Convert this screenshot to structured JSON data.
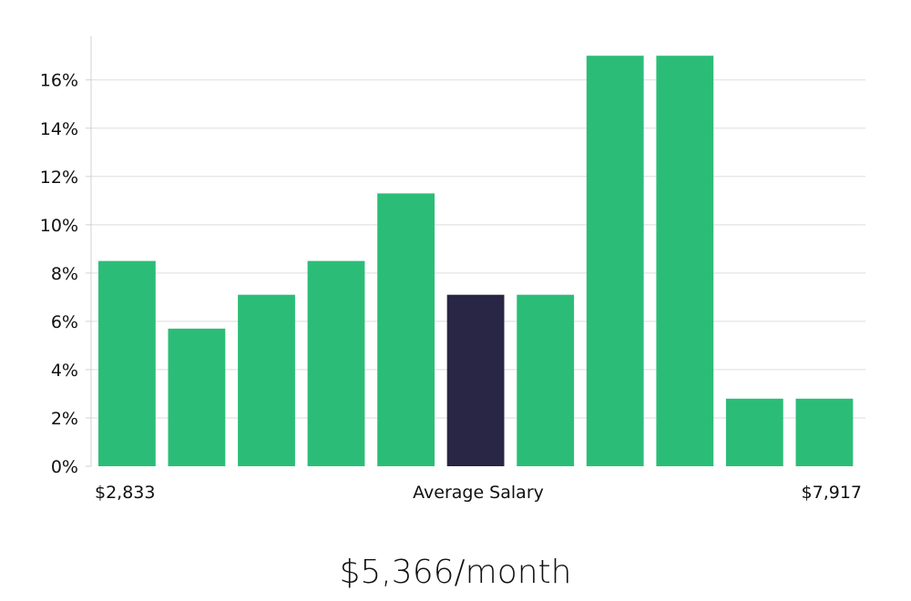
{
  "colors": {
    "bar": "#2bbd77",
    "highlight": "#282545",
    "grid": "#dddddd",
    "axis": "#d0d0d0"
  },
  "chart_data": {
    "type": "bar",
    "categories": [
      "1",
      "2",
      "3",
      "4",
      "5",
      "6",
      "7",
      "8",
      "9",
      "10",
      "11"
    ],
    "values": [
      8.5,
      5.7,
      7.1,
      8.5,
      11.3,
      7.1,
      7.1,
      17.0,
      17.0,
      2.8,
      2.8
    ],
    "highlight_index": 5,
    "ylim": [
      0,
      17.8
    ],
    "yticks": [
      0,
      2,
      4,
      6,
      8,
      10,
      12,
      14,
      16
    ],
    "ytick_suffix": "%",
    "grid": true,
    "x_min_label": "$2,833",
    "xlabel": "Average Salary",
    "x_max_label": "$7,917"
  },
  "summary": {
    "average_value": "$5,366/month"
  }
}
